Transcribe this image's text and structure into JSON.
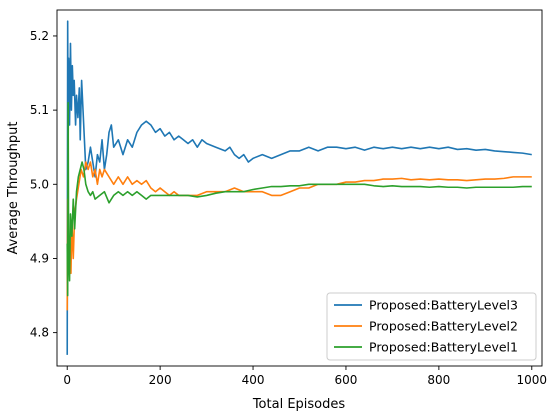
{
  "chart_data": {
    "type": "line",
    "title": "",
    "xlabel": "Total Episodes",
    "ylabel": "Average Throughput",
    "xlim": [
      -22,
      1022
    ],
    "ylim": [
      4.755,
      5.235
    ],
    "xticks": [
      0,
      200,
      400,
      600,
      800,
      1000
    ],
    "yticks": [
      4.8,
      4.9,
      5.0,
      5.1,
      5.2
    ],
    "ytick_labels": [
      "4.8",
      "4.9",
      "5.0",
      "5.1",
      "5.2"
    ],
    "grid": false,
    "legend_position": "lower-right",
    "series": [
      {
        "name": "Proposed:BatteryLevel3",
        "color": "#1f77b4",
        "points": [
          [
            0,
            4.77
          ],
          [
            1,
            5.22
          ],
          [
            2,
            5.05
          ],
          [
            3,
            5.17
          ],
          [
            5,
            5.08
          ],
          [
            7,
            5.19
          ],
          [
            9,
            5.1
          ],
          [
            11,
            5.16
          ],
          [
            13,
            5.12
          ],
          [
            15,
            5.14
          ],
          [
            18,
            5.08
          ],
          [
            20,
            5.12
          ],
          [
            23,
            5.09
          ],
          [
            26,
            5.13
          ],
          [
            28,
            5.06
          ],
          [
            31,
            5.14
          ],
          [
            34,
            5.1
          ],
          [
            37,
            5.06
          ],
          [
            40,
            5.02
          ],
          [
            45,
            5.03
          ],
          [
            50,
            5.05
          ],
          [
            55,
            5.03
          ],
          [
            60,
            5.01
          ],
          [
            65,
            5.04
          ],
          [
            70,
            5.03
          ],
          [
            75,
            5.06
          ],
          [
            80,
            5.02
          ],
          [
            85,
            5.04
          ],
          [
            90,
            5.07
          ],
          [
            95,
            5.08
          ],
          [
            100,
            5.05
          ],
          [
            110,
            5.06
          ],
          [
            120,
            5.04
          ],
          [
            130,
            5.06
          ],
          [
            140,
            5.05
          ],
          [
            150,
            5.07
          ],
          [
            160,
            5.08
          ],
          [
            170,
            5.085
          ],
          [
            180,
            5.08
          ],
          [
            190,
            5.07
          ],
          [
            200,
            5.075
          ],
          [
            210,
            5.065
          ],
          [
            220,
            5.07
          ],
          [
            230,
            5.06
          ],
          [
            240,
            5.065
          ],
          [
            250,
            5.06
          ],
          [
            260,
            5.055
          ],
          [
            270,
            5.06
          ],
          [
            280,
            5.05
          ],
          [
            290,
            5.06
          ],
          [
            300,
            5.055
          ],
          [
            320,
            5.05
          ],
          [
            340,
            5.045
          ],
          [
            350,
            5.05
          ],
          [
            360,
            5.04
          ],
          [
            370,
            5.035
          ],
          [
            380,
            5.04
          ],
          [
            390,
            5.03
          ],
          [
            400,
            5.035
          ],
          [
            420,
            5.04
          ],
          [
            440,
            5.035
          ],
          [
            460,
            5.04
          ],
          [
            480,
            5.045
          ],
          [
            500,
            5.045
          ],
          [
            520,
            5.05
          ],
          [
            540,
            5.045
          ],
          [
            560,
            5.05
          ],
          [
            580,
            5.05
          ],
          [
            600,
            5.048
          ],
          [
            620,
            5.05
          ],
          [
            640,
            5.046
          ],
          [
            660,
            5.05
          ],
          [
            680,
            5.048
          ],
          [
            700,
            5.05
          ],
          [
            720,
            5.048
          ],
          [
            740,
            5.05
          ],
          [
            760,
            5.048
          ],
          [
            780,
            5.05
          ],
          [
            800,
            5.048
          ],
          [
            820,
            5.05
          ],
          [
            840,
            5.047
          ],
          [
            860,
            5.048
          ],
          [
            880,
            5.046
          ],
          [
            900,
            5.047
          ],
          [
            920,
            5.045
          ],
          [
            940,
            5.044
          ],
          [
            960,
            5.043
          ],
          [
            980,
            5.042
          ],
          [
            1000,
            5.04
          ]
        ]
      },
      {
        "name": "Proposed:BatteryLevel2",
        "color": "#ff7f0e",
        "points": [
          [
            0,
            4.83
          ],
          [
            1,
            4.98
          ],
          [
            3,
            4.9
          ],
          [
            5,
            4.93
          ],
          [
            8,
            4.88
          ],
          [
            10,
            4.95
          ],
          [
            13,
            4.9
          ],
          [
            16,
            4.96
          ],
          [
            20,
            4.98
          ],
          [
            25,
            5.0
          ],
          [
            30,
            5.02
          ],
          [
            35,
            5.01
          ],
          [
            40,
            5.03
          ],
          [
            45,
            5.02
          ],
          [
            50,
            5.03
          ],
          [
            55,
            5.01
          ],
          [
            60,
            5.02
          ],
          [
            65,
            5.0
          ],
          [
            70,
            5.02
          ],
          [
            75,
            5.01
          ],
          [
            80,
            5.02
          ],
          [
            90,
            5.01
          ],
          [
            100,
            5.0
          ],
          [
            110,
            5.01
          ],
          [
            120,
            5.0
          ],
          [
            130,
            5.01
          ],
          [
            140,
            5.0
          ],
          [
            150,
            5.005
          ],
          [
            160,
            5.0
          ],
          [
            170,
            5.005
          ],
          [
            180,
            4.995
          ],
          [
            190,
            4.99
          ],
          [
            200,
            4.995
          ],
          [
            210,
            4.99
          ],
          [
            220,
            4.985
          ],
          [
            230,
            4.99
          ],
          [
            240,
            4.985
          ],
          [
            260,
            4.985
          ],
          [
            280,
            4.985
          ],
          [
            300,
            4.99
          ],
          [
            320,
            4.99
          ],
          [
            340,
            4.99
          ],
          [
            360,
            4.995
          ],
          [
            380,
            4.99
          ],
          [
            400,
            4.99
          ],
          [
            420,
            4.99
          ],
          [
            440,
            4.985
          ],
          [
            460,
            4.985
          ],
          [
            480,
            4.99
          ],
          [
            500,
            4.995
          ],
          [
            520,
            4.995
          ],
          [
            540,
            5.0
          ],
          [
            560,
            5.0
          ],
          [
            580,
            5.0
          ],
          [
            600,
            5.003
          ],
          [
            620,
            5.003
          ],
          [
            640,
            5.005
          ],
          [
            660,
            5.005
          ],
          [
            680,
            5.007
          ],
          [
            700,
            5.007
          ],
          [
            720,
            5.008
          ],
          [
            740,
            5.006
          ],
          [
            760,
            5.007
          ],
          [
            780,
            5.006
          ],
          [
            800,
            5.007
          ],
          [
            820,
            5.006
          ],
          [
            840,
            5.006
          ],
          [
            860,
            5.005
          ],
          [
            880,
            5.006
          ],
          [
            900,
            5.007
          ],
          [
            920,
            5.007
          ],
          [
            940,
            5.008
          ],
          [
            960,
            5.01
          ],
          [
            980,
            5.01
          ],
          [
            1000,
            5.01
          ]
        ]
      },
      {
        "name": "Proposed:BatteryLevel1",
        "color": "#2ca02c",
        "points": [
          [
            0,
            4.92
          ],
          [
            1,
            4.85
          ],
          [
            2,
            5.11
          ],
          [
            3,
            4.91
          ],
          [
            5,
            4.87
          ],
          [
            7,
            4.96
          ],
          [
            10,
            4.93
          ],
          [
            13,
            4.98
          ],
          [
            16,
            4.94
          ],
          [
            20,
            4.99
          ],
          [
            24,
            5.01
          ],
          [
            28,
            5.02
          ],
          [
            32,
            5.03
          ],
          [
            36,
            5.02
          ],
          [
            40,
            5.0
          ],
          [
            45,
            4.99
          ],
          [
            50,
            4.985
          ],
          [
            55,
            4.99
          ],
          [
            60,
            4.98
          ],
          [
            70,
            4.985
          ],
          [
            80,
            4.99
          ],
          [
            90,
            4.975
          ],
          [
            100,
            4.985
          ],
          [
            110,
            4.99
          ],
          [
            120,
            4.985
          ],
          [
            130,
            4.99
          ],
          [
            140,
            4.985
          ],
          [
            150,
            4.99
          ],
          [
            160,
            4.985
          ],
          [
            170,
            4.98
          ],
          [
            180,
            4.985
          ],
          [
            200,
            4.985
          ],
          [
            220,
            4.985
          ],
          [
            240,
            4.985
          ],
          [
            260,
            4.985
          ],
          [
            280,
            4.983
          ],
          [
            300,
            4.985
          ],
          [
            320,
            4.988
          ],
          [
            340,
            4.99
          ],
          [
            360,
            4.99
          ],
          [
            380,
            4.99
          ],
          [
            400,
            4.993
          ],
          [
            420,
            4.995
          ],
          [
            440,
            4.997
          ],
          [
            460,
            4.997
          ],
          [
            480,
            4.998
          ],
          [
            500,
            4.998
          ],
          [
            520,
            5.0
          ],
          [
            540,
            5.0
          ],
          [
            560,
            5.0
          ],
          [
            580,
            5.0
          ],
          [
            600,
            5.0
          ],
          [
            620,
            5.0
          ],
          [
            640,
            5.0
          ],
          [
            660,
            4.998
          ],
          [
            680,
            4.997
          ],
          [
            700,
            4.998
          ],
          [
            720,
            4.997
          ],
          [
            740,
            4.997
          ],
          [
            760,
            4.997
          ],
          [
            780,
            4.996
          ],
          [
            800,
            4.997
          ],
          [
            820,
            4.996
          ],
          [
            840,
            4.996
          ],
          [
            860,
            4.995
          ],
          [
            880,
            4.996
          ],
          [
            900,
            4.996
          ],
          [
            920,
            4.996
          ],
          [
            940,
            4.996
          ],
          [
            960,
            4.996
          ],
          [
            980,
            4.997
          ],
          [
            1000,
            4.997
          ]
        ]
      }
    ]
  }
}
